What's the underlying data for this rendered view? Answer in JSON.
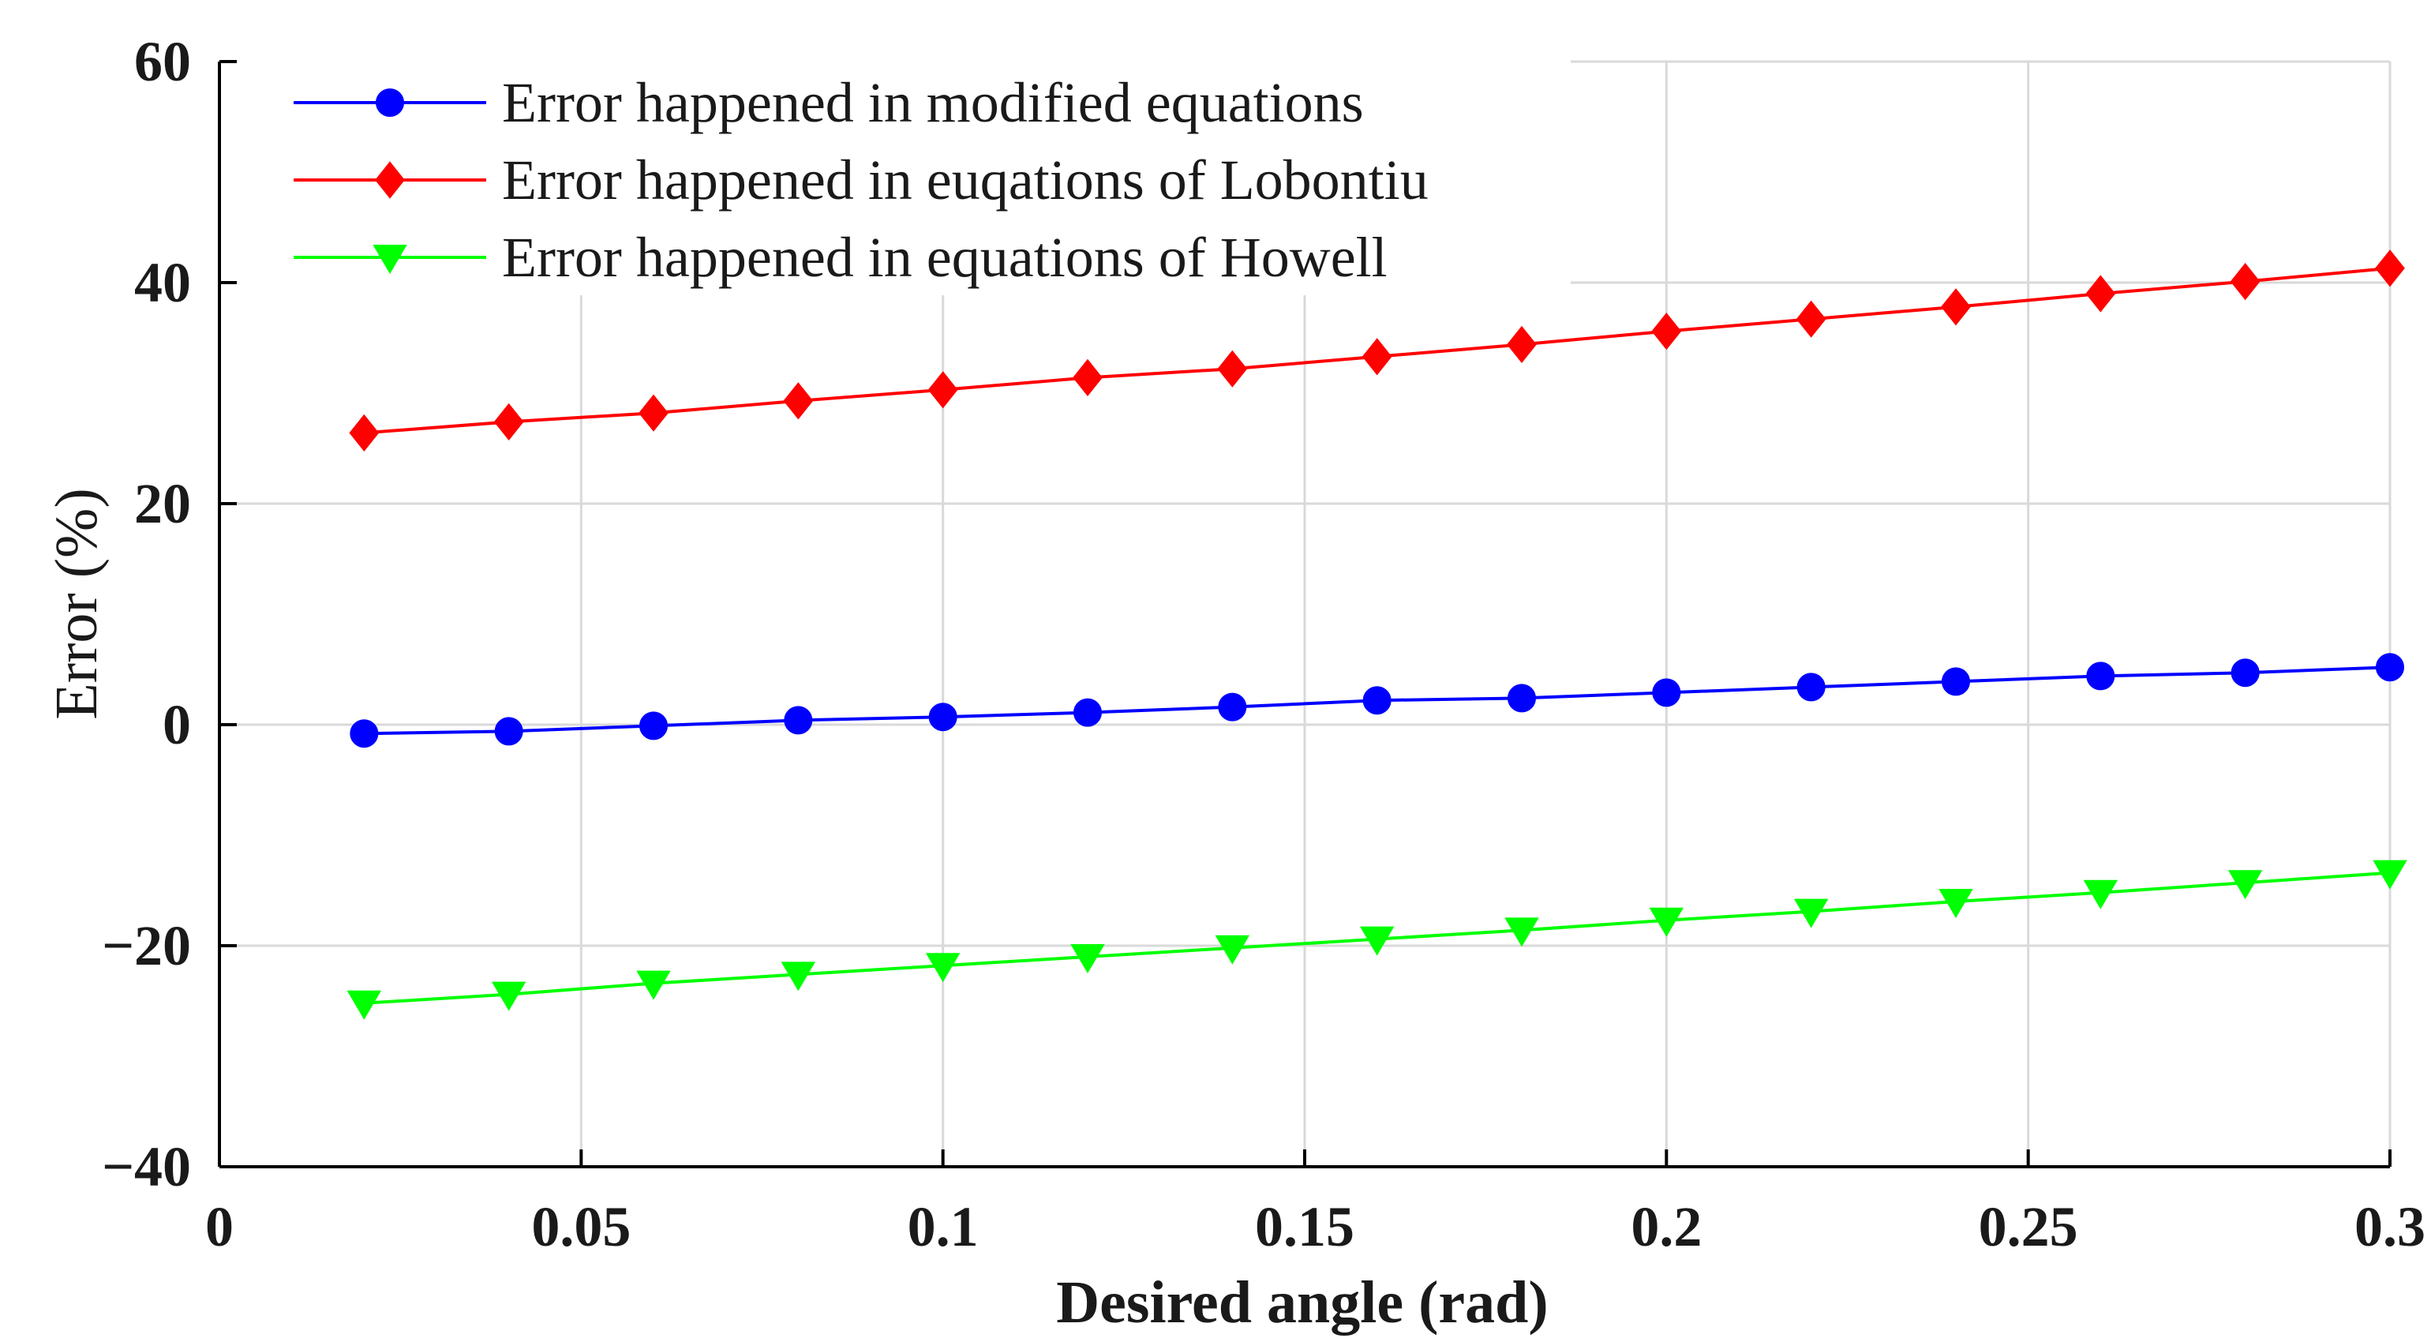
{
  "chart_data": {
    "type": "line",
    "title": "",
    "xlabel": "Desired angle (rad)",
    "ylabel": "Error (%)",
    "xlim": [
      0,
      0.3
    ],
    "ylim": [
      -40,
      60
    ],
    "grid": true,
    "legend_position": "top-left",
    "x_ticks": [
      0,
      0.05,
      0.1,
      0.15,
      0.2,
      0.25,
      0.3
    ],
    "x_tick_labels": [
      "0",
      "0.05",
      "0.1",
      "0.15",
      "0.2",
      "0.25",
      "0.3"
    ],
    "y_ticks": [
      -40,
      -20,
      0,
      20,
      40,
      60
    ],
    "y_tick_labels": [
      "−40",
      "−20",
      "0",
      "20",
      "40",
      "60"
    ],
    "x": [
      0.02,
      0.04,
      0.06,
      0.08,
      0.1,
      0.12,
      0.14,
      0.16,
      0.18,
      0.2,
      0.22,
      0.24,
      0.26,
      0.28,
      0.3
    ],
    "series": [
      {
        "name": "Error happened in modified equations",
        "color": "#0000ff",
        "marker": "circle",
        "values": [
          -0.8,
          -0.6,
          -0.1,
          0.4,
          0.7,
          1.1,
          1.6,
          2.2,
          2.4,
          2.9,
          3.4,
          3.9,
          4.4,
          4.7,
          5.2
        ]
      },
      {
        "name": "Error happened in euqations of Lobontiu",
        "color": "#ff0000",
        "marker": "diamond",
        "values": [
          26.4,
          27.4,
          28.2,
          29.3,
          30.3,
          31.4,
          32.2,
          33.3,
          34.4,
          35.6,
          36.7,
          37.8,
          39.0,
          40.1,
          41.3
        ]
      },
      {
        "name": "Error happened in equations of Howell",
        "color": "#00ff00",
        "marker": "triangle-down",
        "values": [
          -25.2,
          -24.4,
          -23.4,
          -22.6,
          -21.8,
          -21.0,
          -20.2,
          -19.4,
          -18.6,
          -17.7,
          -16.9,
          -16.0,
          -15.2,
          -14.3,
          -13.4
        ]
      }
    ]
  }
}
